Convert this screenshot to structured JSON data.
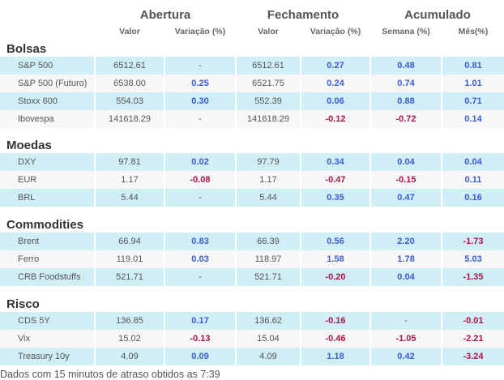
{
  "headers": {
    "abertura": "Abertura",
    "fechamento": "Fechamento",
    "acumulado": "Acumulado",
    "valor1": "Valor",
    "variacao1": "Variação (%)",
    "valor2": "Valor",
    "variacao2": "Variação (%)",
    "semana": "Semana (%)",
    "mes": "Mês(%)"
  },
  "sections": [
    {
      "title": "Bolsas",
      "rows": [
        {
          "name": "S&P 500",
          "open_val": "6512.61",
          "open_var": "-",
          "close_val": "6512.61",
          "close_var": "0.27",
          "week": "0.48",
          "month": "0.81"
        },
        {
          "name": "S&P 500 (Futuro)",
          "open_val": "6538.00",
          "open_var": "0.25",
          "close_val": "6521.75",
          "close_var": "0.24",
          "week": "0.74",
          "month": "1.01"
        },
        {
          "name": "Stoxx 600",
          "open_val": "554.03",
          "open_var": "0.30",
          "close_val": "552.39",
          "close_var": "0.06",
          "week": "0.88",
          "month": "0.71"
        },
        {
          "name": "Ibovespa",
          "open_val": "141618.29",
          "open_var": "-",
          "close_val": "141618.29",
          "close_var": "-0.12",
          "week": "-0.72",
          "month": "0.14"
        }
      ]
    },
    {
      "title": "Moedas",
      "rows": [
        {
          "name": "DXY",
          "open_val": "97.81",
          "open_var": "0.02",
          "close_val": "97.79",
          "close_var": "0.34",
          "week": "0.04",
          "month": "0.04"
        },
        {
          "name": "EUR",
          "open_val": "1.17",
          "open_var": "-0.08",
          "close_val": "1.17",
          "close_var": "-0.47",
          "week": "-0.15",
          "month": "0.11"
        },
        {
          "name": "BRL",
          "open_val": "5.44",
          "open_var": "-",
          "close_val": "5.44",
          "close_var": "0.35",
          "week": "0.47",
          "month": "0.16"
        }
      ]
    },
    {
      "title": "Commodities",
      "rows": [
        {
          "name": "Brent",
          "open_val": "66.94",
          "open_var": "0.83",
          "close_val": "66.39",
          "close_var": "0.56",
          "week": "2.20",
          "month": "-1.73"
        },
        {
          "name": "Ferro",
          "open_val": "119.01",
          "open_var": "0.03",
          "close_val": "118.97",
          "close_var": "1.58",
          "week": "1.78",
          "month": "5.03"
        },
        {
          "name": "CRB Foodstuffs",
          "open_val": "521.71",
          "open_var": "-",
          "close_val": "521.71",
          "close_var": "-0.20",
          "week": "0.04",
          "month": "-1.35"
        }
      ]
    },
    {
      "title": "Risco",
      "rows": [
        {
          "name": "CDS 5Y",
          "open_val": "136.85",
          "open_var": "0.17",
          "close_val": "136.62",
          "close_var": "-0.16",
          "week": "-",
          "month": "-0.01"
        },
        {
          "name": "Vix",
          "open_val": "15.02",
          "open_var": "-0.13",
          "close_val": "15.04",
          "close_var": "-0.46",
          "week": "-1.05",
          "month": "-2.21"
        },
        {
          "name": "Treasury 10y",
          "open_val": "4.09",
          "open_var": "0.09",
          "close_val": "4.09",
          "close_var": "1.18",
          "week": "0.42",
          "month": "-3.24"
        }
      ]
    }
  ],
  "footer": "Dados com 15 minutos de atraso obtidos as 7:39",
  "colors": {
    "positive": "#3b5bdb",
    "negative": "#b0134a",
    "band": "#cfeef6"
  }
}
